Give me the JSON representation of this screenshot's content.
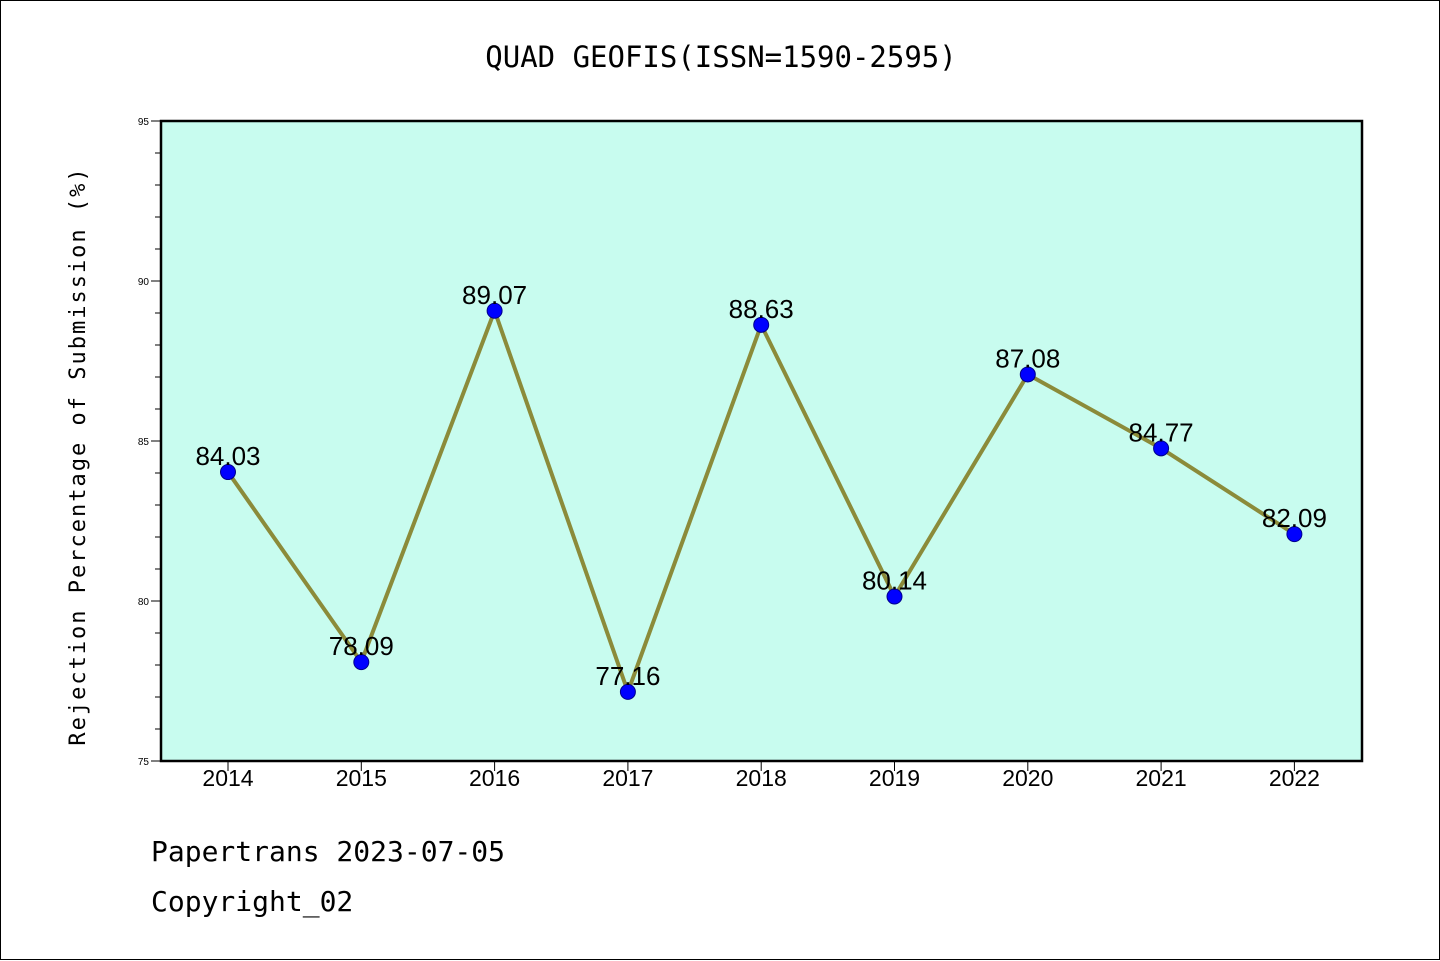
{
  "chart_data": {
    "type": "line",
    "title": "QUAD GEOFIS(ISSN=1590-2595)",
    "xlabel": "",
    "ylabel": "Rejection Percentage of Submission (%)",
    "categories": [
      "2014",
      "2015",
      "2016",
      "2017",
      "2018",
      "2019",
      "2020",
      "2021",
      "2022"
    ],
    "series": [
      {
        "values": [
          84.03,
          78.09,
          89.07,
          77.16,
          88.63,
          80.14,
          87.08,
          84.77,
          82.09
        ],
        "labels": [
          "84.03",
          "78.09",
          "89.07",
          "77.16",
          "88.63",
          "80.14",
          "87.08",
          "84.77",
          "82.09"
        ]
      }
    ],
    "ylim": [
      75,
      95
    ],
    "yticks": [
      75,
      80,
      85,
      90,
      95
    ],
    "grid": false,
    "colors": {
      "plot_background": "#c8fcef",
      "line": "#8b8b3a",
      "marker": "#0000ff"
    }
  },
  "footer": {
    "line1": "Papertrans 2023-07-05",
    "line2": "Copyright_02"
  }
}
